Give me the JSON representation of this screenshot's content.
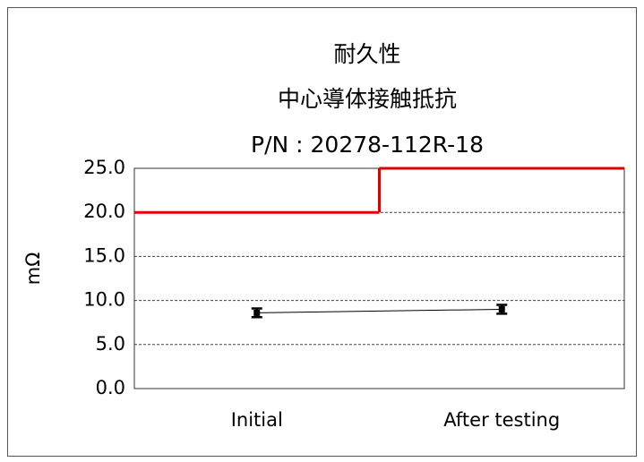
{
  "chart_data": {
    "type": "line",
    "title": [
      "耐久性",
      "中心導体接触抵抗",
      "P/N : 20278-112R-18"
    ],
    "ylabel": "mΩ",
    "categories": [
      "Initial",
      "After testing"
    ],
    "series": [
      {
        "color": "#000000",
        "values": [
          8.6,
          9.0
        ],
        "errors": [
          0.5,
          0.5
        ]
      },
      {
        "color": "#e00000",
        "values": [
          20,
          25
        ],
        "step": true
      }
    ],
    "ylim": [
      0,
      25
    ],
    "yticks": [
      {
        "value": 0,
        "label": "0.0"
      },
      {
        "value": 5,
        "label": "5.0"
      },
      {
        "value": 10,
        "label": "10.0"
      },
      {
        "value": 15,
        "label": "15.0"
      },
      {
        "value": 20,
        "label": "20.0"
      },
      {
        "value": 25,
        "label": "25.0"
      }
    ],
    "grid": true
  }
}
